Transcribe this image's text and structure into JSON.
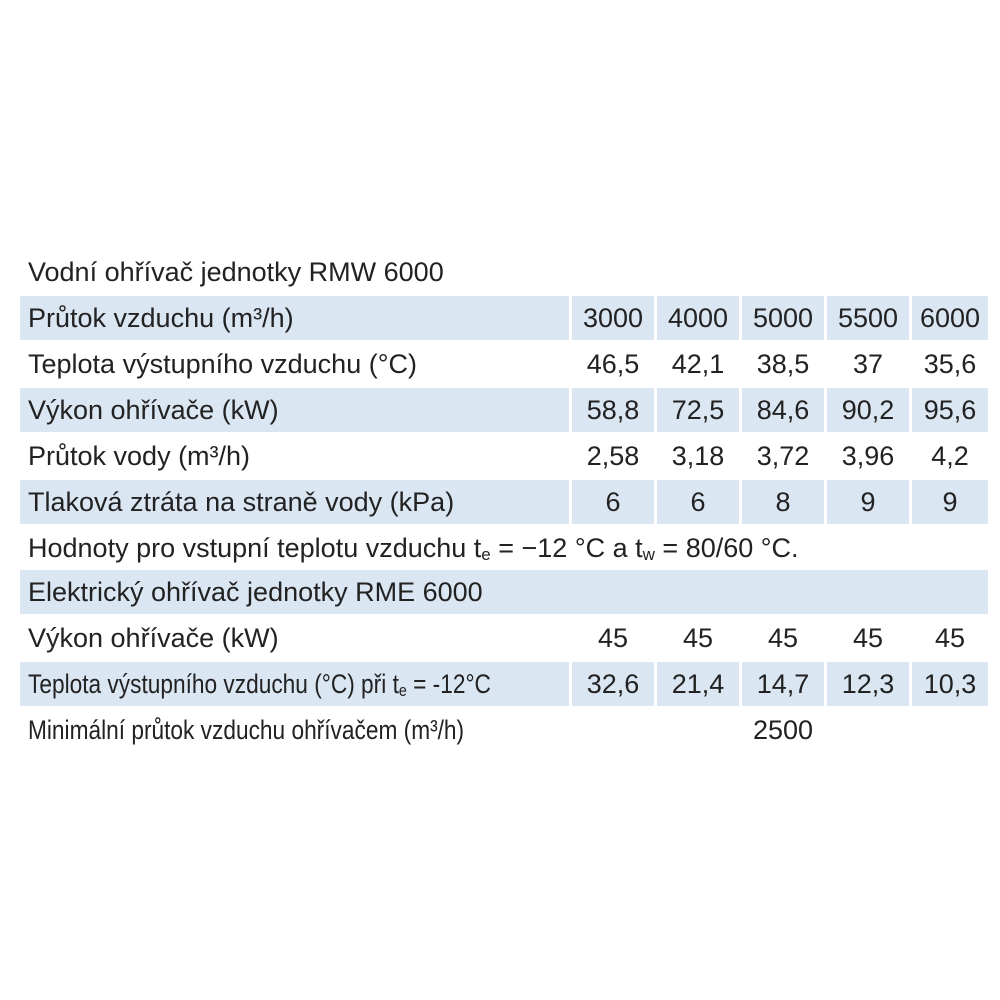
{
  "section1": {
    "title": "Vodní ohřívač jednotky RMW 6000",
    "rows": [
      {
        "label": "Průtok vzduchu (m³/h)",
        "values": [
          "3000",
          "4000",
          "5000",
          "5500",
          "6000"
        ]
      },
      {
        "label": "Teplota výstupního vzduchu (°C)",
        "values": [
          "46,5",
          "42,1",
          "38,5",
          "37",
          "35,6"
        ]
      },
      {
        "label": "Výkon ohřívače (kW)",
        "values": [
          "58,8",
          "72,5",
          "84,6",
          "90,2",
          "95,6"
        ]
      },
      {
        "label": "Průtok vody (m³/h)",
        "values": [
          "2,58",
          "3,18",
          "3,72",
          "3,96",
          "4,2"
        ]
      },
      {
        "label": "Tlaková ztráta na straně vody (kPa)",
        "values": [
          "6",
          "6",
          "8",
          "9",
          "9"
        ]
      }
    ],
    "note": [
      "Hodnoty pro vstupní teplotu vzduchu t",
      "e",
      " = −12 °C a t",
      "w",
      " = 80/60 °C."
    ]
  },
  "section2": {
    "title": "Elektrický ohřívač jednotky RME 6000",
    "rows": [
      {
        "label": "Výkon ohřívače (kW)",
        "values": [
          "45",
          "45",
          "45",
          "45",
          "45"
        ]
      },
      {
        "label": [
          "Teplota výstupního vzduchu (°C) při t",
          "e",
          " = -12°C"
        ],
        "values": [
          "32,6",
          "21,4",
          "14,7",
          "12,3",
          "10,3"
        ]
      },
      {
        "label": "Minimální průtok vzduchu ohřívačem (m³/h)",
        "values": [
          "2500"
        ]
      }
    ]
  }
}
